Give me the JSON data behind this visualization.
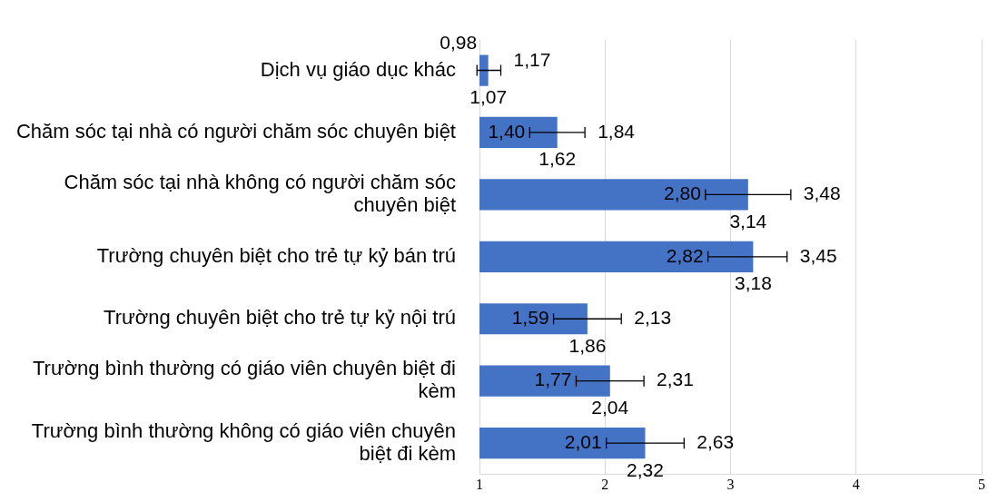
{
  "chart_data": {
    "type": "bar",
    "orientation": "horizontal",
    "categories": [
      "Dịch vụ giáo dục khác",
      "Chăm sóc tại nhà có người chăm sóc chuyên biệt",
      "Chăm sóc tại nhà không có người chăm sóc chuyên biệt",
      "Trường chuyên biệt cho trẻ tự kỷ bán trú",
      "Trường chuyên biệt cho trẻ tự kỷ nội trú",
      "Trường bình thường có giáo viên chuyên biệt đi kèm",
      "Trường bình thường không có giáo viên chuyên biệt đi kèm"
    ],
    "values": [
      1.07,
      1.62,
      3.14,
      3.18,
      1.86,
      2.04,
      2.32
    ],
    "value_labels": [
      "1,07",
      "1,62",
      "3,14",
      "3,18",
      "1,86",
      "2,04",
      "2,32"
    ],
    "errors": [
      [
        0.98,
        1.17
      ],
      [
        1.4,
        1.84
      ],
      [
        2.8,
        3.48
      ],
      [
        2.82,
        3.45
      ],
      [
        1.59,
        2.13
      ],
      [
        1.77,
        2.31
      ],
      [
        2.01,
        2.63
      ]
    ],
    "color": "#4472c4",
    "xlim": [
      1,
      5
    ],
    "xticks": [
      1,
      2,
      3,
      4,
      5
    ],
    "grid": "x",
    "legend": false,
    "annotations": [
      {
        "text": "0,98",
        "x": 0.98,
        "y": "Dịch vụ giáo dục khác"
      },
      {
        "text": "1,17",
        "x": 1.17,
        "y": "Dịch vụ giáo dục khác"
      },
      {
        "text": "1,40",
        "x": 1.4,
        "y": "Chăm sóc tại nhà có người chăm sóc chuyên biệt"
      },
      {
        "text": "1,84",
        "x": 1.84,
        "y": "Chăm sóc tại nhà có người chăm sóc chuyên biệt"
      },
      {
        "text": "2,80",
        "x": 2.8,
        "y": "Chăm sóc tại nhà không có người chăm sóc chuyên biệt"
      },
      {
        "text": "3,48",
        "x": 3.48,
        "y": "Chăm sóc tại nhà không có người chăm sóc chuyên biệt"
      },
      {
        "text": "2,82",
        "x": 2.82,
        "y": "Trường chuyên biệt cho trẻ tự kỷ bán trú"
      },
      {
        "text": "3,45",
        "x": 3.45,
        "y": "Trường chuyên biệt cho trẻ tự kỷ bán trú"
      },
      {
        "text": "1,59",
        "x": 1.59,
        "y": "Trường chuyên biệt cho trẻ tự kỷ nội trú"
      },
      {
        "text": "2,13",
        "x": 2.13,
        "y": "Trường chuyên biệt cho trẻ tự kỷ nội trú"
      },
      {
        "text": "1,77",
        "x": 1.77,
        "y": "Trường bình thường có giáo viên chuyên biệt đi kèm"
      },
      {
        "text": "2,31",
        "x": 2.31,
        "y": "Trường bình thường có giáo viên chuyên biệt đi kèm"
      },
      {
        "text": "2,01",
        "x": 2.01,
        "y": "Trường bình thường không có giáo viên chuyên biệt đi kèm"
      },
      {
        "text": "2,63",
        "x": 2.63,
        "y": "Trường bình thường không có giáo viên chuyên biệt đi kèm"
      }
    ]
  }
}
